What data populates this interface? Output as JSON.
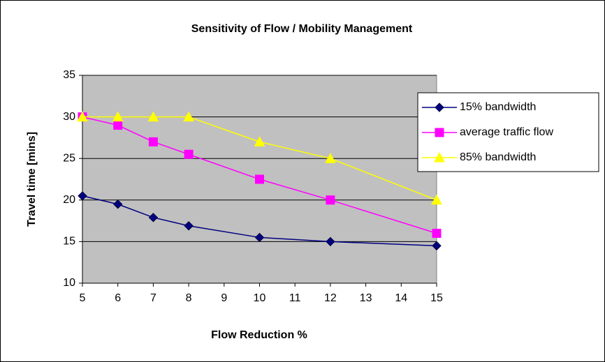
{
  "chart_data": {
    "type": "line",
    "title": "Sensitivity of Flow / Mobility Management",
    "xlabel": "Flow Reduction %",
    "ylabel": "Travel time [mins]",
    "x": [
      5,
      6,
      7,
      8,
      10,
      12,
      15
    ],
    "series": [
      {
        "name": "15% bandwidth",
        "color": "#000080",
        "marker": "diamond",
        "values": [
          20.5,
          19.5,
          17.9,
          16.9,
          15.5,
          15,
          14.5
        ]
      },
      {
        "name": "average traffic flow",
        "color": "#ff00ff",
        "marker": "square",
        "values": [
          30,
          29,
          27,
          25.5,
          22.5,
          20,
          16
        ]
      },
      {
        "name": "85% bandwidth",
        "color": "#ffff00",
        "marker": "triangle",
        "values": [
          30,
          30,
          30,
          30,
          27,
          25,
          20
        ]
      }
    ],
    "xlim": [
      5,
      15
    ],
    "xticks": [
      5,
      6,
      7,
      8,
      9,
      10,
      11,
      12,
      13,
      14,
      15
    ],
    "ylim": [
      10,
      35
    ],
    "yticks": [
      10,
      15,
      20,
      25,
      30,
      35
    ],
    "grid": true,
    "plot_background": "#c0c0c0",
    "legend": "right"
  }
}
